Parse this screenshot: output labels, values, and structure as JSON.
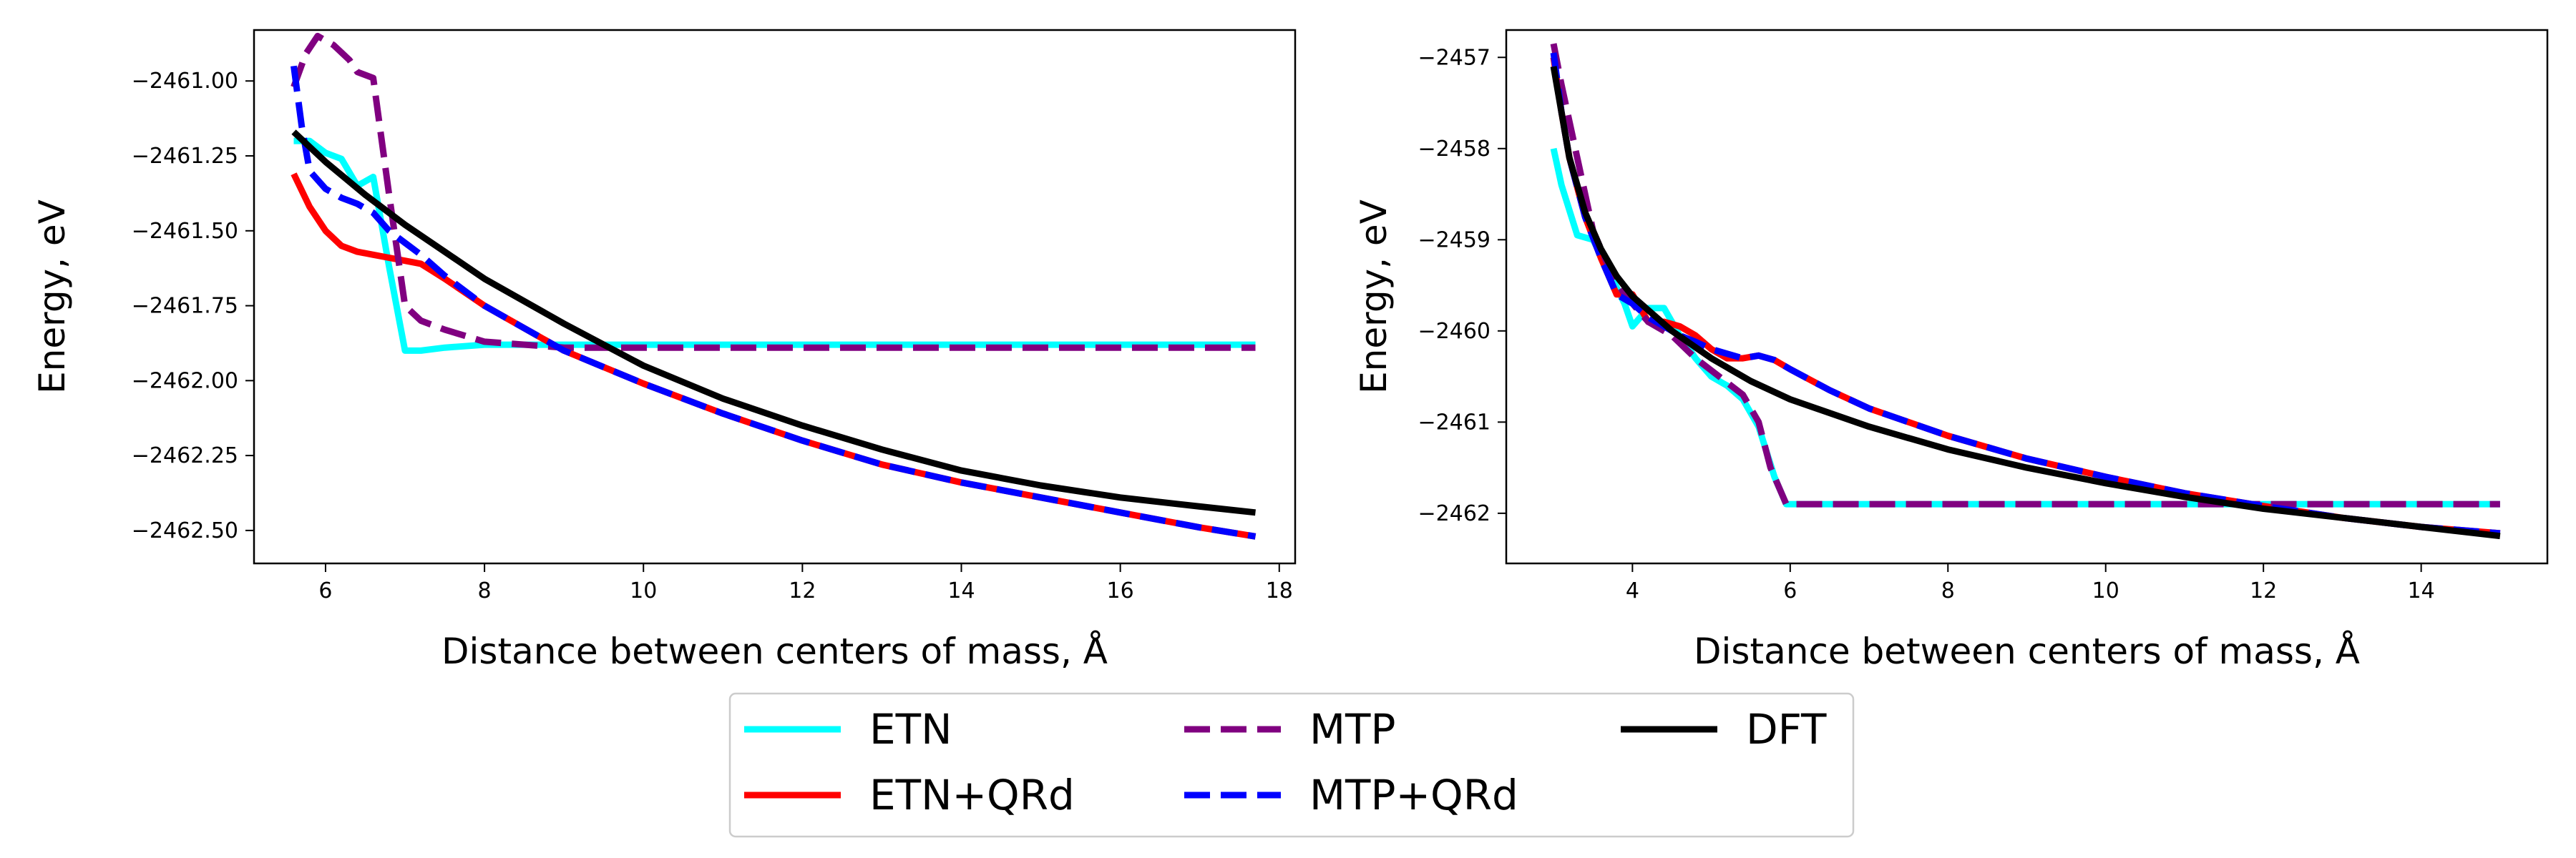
{
  "legend": {
    "placement": "bottom-center",
    "ncol": 3,
    "entries": [
      {
        "label": "ETN",
        "color": "#00ffff",
        "dash": "solid"
      },
      {
        "label": "ETN+QRd",
        "color": "#ff0000",
        "dash": "solid"
      },
      {
        "label": "MTP",
        "color": "#800080",
        "dash": "dashed"
      },
      {
        "label": "MTP+QRd",
        "color": "#0000ff",
        "dash": "dashed"
      },
      {
        "label": "DFT",
        "color": "#000000",
        "dash": "solid"
      }
    ]
  },
  "chart_data": [
    {
      "type": "line",
      "title": "",
      "xlabel": "Distance between centers of mass, Å",
      "ylabel": "Energy, eV",
      "xlim": [
        5.1,
        18.2
      ],
      "ylim": [
        -2462.61,
        -2460.83
      ],
      "xticks": [
        6,
        8,
        10,
        12,
        14,
        16,
        18
      ],
      "xtick_labels": [
        "6",
        "8",
        "10",
        "12",
        "14",
        "16",
        "18"
      ],
      "yticks": [
        -2461.0,
        -2461.25,
        -2461.5,
        -2461.75,
        -2462.0,
        -2462.25,
        -2462.5
      ],
      "ytick_labels": [
        "−2461.00",
        "−2461.25",
        "−2461.50",
        "−2461.75",
        "−2462.00",
        "−2462.25",
        "−2462.50"
      ],
      "grid": false,
      "series": [
        {
          "name": "ETN",
          "x": [
            5.6,
            5.8,
            6.0,
            6.2,
            6.4,
            6.6,
            6.8,
            7.0,
            7.2,
            7.5,
            8.0,
            9.0,
            10.0,
            12.0,
            14.0,
            16.0,
            17.7
          ],
          "y": [
            -2461.2,
            -2461.2,
            -2461.24,
            -2461.26,
            -2461.35,
            -2461.32,
            -2461.62,
            -2461.9,
            -2461.9,
            -2461.89,
            -2461.88,
            -2461.88,
            -2461.88,
            -2461.88,
            -2461.88,
            -2461.88,
            -2461.88
          ]
        },
        {
          "name": "ETN+QRd",
          "x": [
            5.6,
            5.8,
            6.0,
            6.2,
            6.4,
            6.6,
            6.8,
            7.0,
            7.2,
            7.5,
            8.0,
            9.0,
            10.0,
            11.0,
            12.0,
            13.0,
            14.0,
            15.0,
            16.0,
            17.0,
            17.7
          ],
          "y": [
            -2461.31,
            -2461.42,
            -2461.5,
            -2461.55,
            -2461.57,
            -2461.58,
            -2461.59,
            -2461.6,
            -2461.61,
            -2461.66,
            -2461.75,
            -2461.9,
            -2462.01,
            -2462.11,
            -2462.2,
            -2462.28,
            -2462.34,
            -2462.39,
            -2462.44,
            -2462.49,
            -2462.52
          ]
        },
        {
          "name": "MTP",
          "x": [
            5.6,
            5.75,
            5.9,
            6.1,
            6.3,
            6.4,
            6.6,
            6.8,
            7.0,
            7.2,
            7.5,
            8.0,
            9.0,
            10.0,
            12.0,
            14.0,
            16.0,
            17.7
          ],
          "y": [
            -2461.02,
            -2460.91,
            -2460.85,
            -2460.88,
            -2460.93,
            -2460.97,
            -2460.99,
            -2461.38,
            -2461.75,
            -2461.8,
            -2461.83,
            -2461.87,
            -2461.89,
            -2461.89,
            -2461.89,
            -2461.89,
            -2461.89,
            -2461.89
          ]
        },
        {
          "name": "MTP+QRd",
          "x": [
            5.6,
            5.7,
            5.8,
            6.0,
            6.2,
            6.4,
            6.6,
            6.8,
            7.0,
            7.2,
            7.5,
            8.0,
            9.0,
            10.0,
            11.0,
            12.0,
            13.0,
            14.0,
            15.0,
            16.0,
            17.0,
            17.7
          ],
          "y": [
            -2460.95,
            -2461.15,
            -2461.3,
            -2461.36,
            -2461.39,
            -2461.41,
            -2461.44,
            -2461.5,
            -2461.54,
            -2461.58,
            -2461.65,
            -2461.75,
            -2461.9,
            -2462.01,
            -2462.11,
            -2462.2,
            -2462.28,
            -2462.34,
            -2462.39,
            -2462.44,
            -2462.49,
            -2462.52
          ]
        },
        {
          "name": "DFT",
          "x": [
            5.6,
            6.0,
            6.5,
            7.0,
            7.5,
            8.0,
            9.0,
            10.0,
            11.0,
            12.0,
            13.0,
            14.0,
            15.0,
            16.0,
            17.0,
            17.7
          ],
          "y": [
            -2461.17,
            -2461.27,
            -2461.38,
            -2461.48,
            -2461.57,
            -2461.66,
            -2461.81,
            -2461.95,
            -2462.06,
            -2462.15,
            -2462.23,
            -2462.3,
            -2462.35,
            -2462.39,
            -2462.42,
            -2462.44
          ]
        }
      ]
    },
    {
      "type": "line",
      "title": "",
      "xlabel": "Distance between centers of mass, Å",
      "ylabel": "Energy, eV",
      "xlim": [
        2.4,
        15.6
      ],
      "ylim": [
        -2462.55,
        -2456.7
      ],
      "xticks": [
        4,
        6,
        8,
        10,
        12,
        14
      ],
      "xtick_labels": [
        "4",
        "6",
        "8",
        "10",
        "12",
        "14"
      ],
      "yticks": [
        -2457,
        -2458,
        -2459,
        -2460,
        -2461,
        -2462
      ],
      "ytick_labels": [
        "−2457",
        "−2458",
        "−2459",
        "−2460",
        "−2461",
        "−2462"
      ],
      "grid": false,
      "series": [
        {
          "name": "ETN",
          "x": [
            3.0,
            3.1,
            3.3,
            3.5,
            3.7,
            3.9,
            4.0,
            4.2,
            4.4,
            4.6,
            4.8,
            5.0,
            5.2,
            5.4,
            5.6,
            5.8,
            5.95,
            6.2,
            7.0,
            8.0,
            10.0,
            12.0,
            14.0,
            15.0
          ],
          "y": [
            -2458.0,
            -2458.4,
            -2458.95,
            -2459.0,
            -2459.35,
            -2459.7,
            -2459.95,
            -2459.75,
            -2459.75,
            -2460.05,
            -2460.3,
            -2460.5,
            -2460.6,
            -2460.75,
            -2461.05,
            -2461.6,
            -2461.9,
            -2461.9,
            -2461.9,
            -2461.9,
            -2461.9,
            -2461.9,
            -2461.9,
            -2461.9
          ]
        },
        {
          "name": "ETN+QRd",
          "x": [
            3.0,
            3.1,
            3.2,
            3.4,
            3.6,
            3.8,
            4.0,
            4.2,
            4.4,
            4.6,
            4.8,
            5.0,
            5.2,
            5.4,
            5.6,
            5.8,
            6.0,
            6.5,
            7.0,
            8.0,
            9.0,
            10.0,
            11.0,
            12.0,
            13.0,
            14.0,
            15.0
          ],
          "y": [
            -2457.0,
            -2457.6,
            -2458.1,
            -2458.75,
            -2459.2,
            -2459.6,
            -2459.6,
            -2459.9,
            -2459.9,
            -2459.95,
            -2460.05,
            -2460.2,
            -2460.3,
            -2460.3,
            -2460.27,
            -2460.32,
            -2460.42,
            -2460.65,
            -2460.85,
            -2461.15,
            -2461.4,
            -2461.6,
            -2461.78,
            -2461.92,
            -2462.05,
            -2462.15,
            -2462.22
          ]
        },
        {
          "name": "MTP",
          "x": [
            3.0,
            3.1,
            3.3,
            3.5,
            3.7,
            3.9,
            4.0,
            4.2,
            4.5,
            4.8,
            5.1,
            5.4,
            5.6,
            5.75,
            5.95,
            6.2,
            7.0,
            8.0,
            10.0,
            12.0,
            14.0,
            15.0
          ],
          "y": [
            -2456.85,
            -2457.3,
            -2458.1,
            -2458.9,
            -2459.3,
            -2459.6,
            -2459.7,
            -2459.9,
            -2460.05,
            -2460.3,
            -2460.5,
            -2460.7,
            -2461.0,
            -2461.5,
            -2461.9,
            -2461.9,
            -2461.9,
            -2461.9,
            -2461.9,
            -2461.9,
            -2461.9,
            -2461.9
          ]
        },
        {
          "name": "MTP+QRd",
          "x": [
            3.0,
            3.1,
            3.2,
            3.4,
            3.6,
            3.8,
            4.0,
            4.2,
            4.4,
            4.6,
            4.8,
            5.0,
            5.2,
            5.4,
            5.6,
            5.8,
            6.0,
            6.5,
            7.0,
            8.0,
            9.0,
            10.0,
            11.0,
            12.0,
            13.0,
            14.0,
            15.0
          ],
          "y": [
            -2456.95,
            -2457.6,
            -2458.1,
            -2458.75,
            -2459.2,
            -2459.6,
            -2459.7,
            -2459.85,
            -2459.95,
            -2460.05,
            -2460.12,
            -2460.2,
            -2460.25,
            -2460.3,
            -2460.27,
            -2460.32,
            -2460.42,
            -2460.65,
            -2460.85,
            -2461.15,
            -2461.4,
            -2461.6,
            -2461.78,
            -2461.92,
            -2462.05,
            -2462.15,
            -2462.22
          ]
        },
        {
          "name": "DFT",
          "x": [
            3.0,
            3.2,
            3.4,
            3.6,
            3.8,
            4.0,
            4.5,
            5.0,
            5.5,
            6.0,
            7.0,
            8.0,
            9.0,
            10.0,
            11.0,
            12.0,
            13.0,
            14.0,
            15.0
          ],
          "y": [
            -2457.1,
            -2458.1,
            -2458.7,
            -2459.1,
            -2459.4,
            -2459.62,
            -2460.0,
            -2460.3,
            -2460.55,
            -2460.75,
            -2461.05,
            -2461.3,
            -2461.5,
            -2461.67,
            -2461.82,
            -2461.95,
            -2462.05,
            -2462.15,
            -2462.25
          ]
        }
      ]
    }
  ]
}
